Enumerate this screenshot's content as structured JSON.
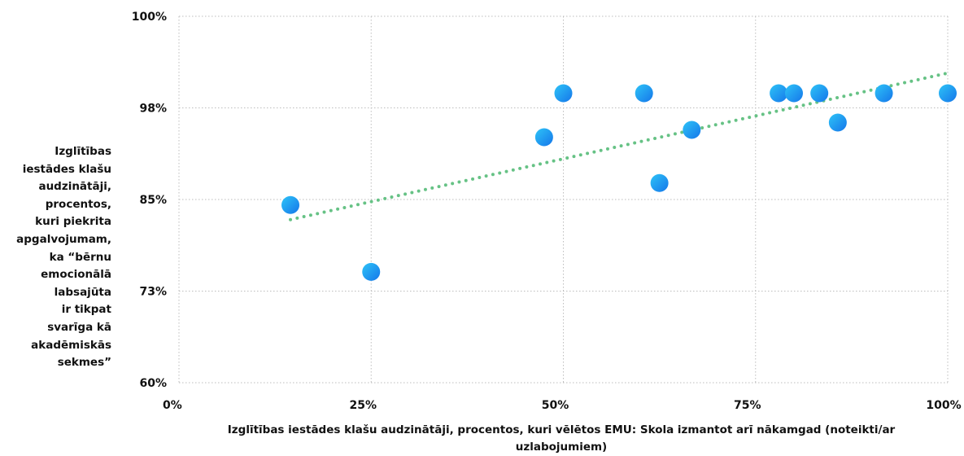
{
  "chart_data": {
    "type": "scatter",
    "xlabel": "Izglītības iestādes klašu audzinātāji, procentos, kuri vēlētos EMU: Skola izmantot arī nākamgad (noteikti/ar uzlabojumiem)",
    "ylabel": "Izglītības\niestādes klašu\naudzinātāji,\nprocentos,\nkuri piekrita\napgalvojumam,\nka “bērnu\nemocionālā\nlabsajūta\nir tikpat\nsvarīga kā\nakadēmiskās\nsekmes”",
    "x_ticks": [
      "0%",
      "25%",
      "50%",
      "75%",
      "100%"
    ],
    "y_ticks": [
      "60%",
      "73%",
      "85%",
      "98%",
      "100%"
    ],
    "xlim": [
      0,
      100
    ],
    "y_tick_positions": [
      0,
      1,
      2,
      3,
      4
    ],
    "points": [
      {
        "x": 14.5,
        "y": 1.94
      },
      {
        "x": 25.0,
        "y": 1.21
      },
      {
        "x": 47.5,
        "y": 2.68
      },
      {
        "x": 50.0,
        "y": 3.16
      },
      {
        "x": 60.5,
        "y": 3.16
      },
      {
        "x": 62.5,
        "y": 2.18
      },
      {
        "x": 66.7,
        "y": 2.76
      },
      {
        "x": 78.0,
        "y": 3.16
      },
      {
        "x": 80.0,
        "y": 3.16
      },
      {
        "x": 83.3,
        "y": 3.16
      },
      {
        "x": 85.7,
        "y": 2.84
      },
      {
        "x": 91.7,
        "y": 3.16
      },
      {
        "x": 100.0,
        "y": 3.16
      }
    ],
    "trendline": {
      "x": [
        14.5,
        100.0
      ],
      "y": [
        1.78,
        3.38
      ]
    },
    "grid": true,
    "colors": {
      "point": "#1aa8f0",
      "point_dark": "#1576ea",
      "trend": "#66c285",
      "grid": "#bdbdbd"
    }
  }
}
